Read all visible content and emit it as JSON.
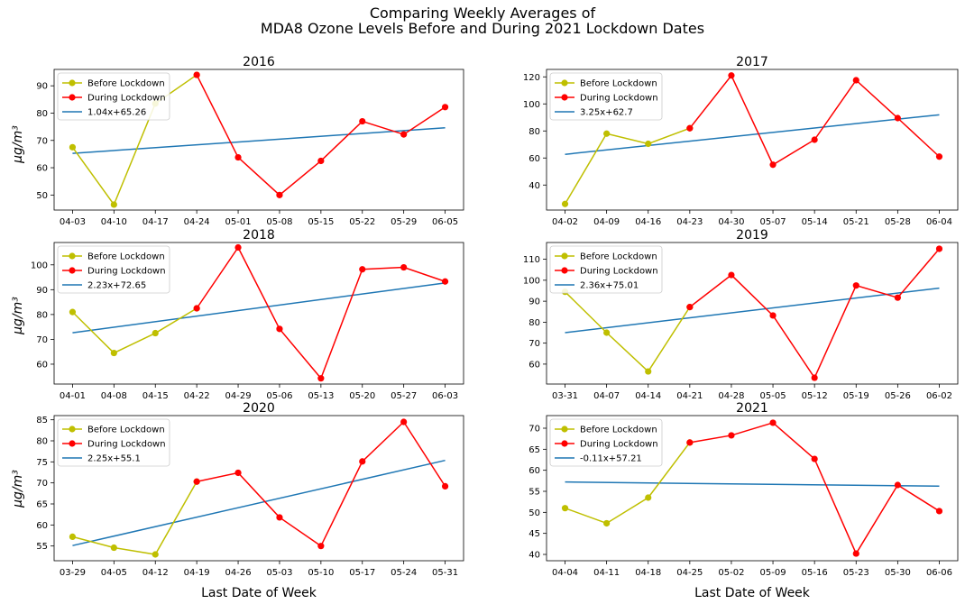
{
  "figure": {
    "title_line1": "Comparing Weekly Averages of",
    "title_line2": "MDA8 Ozone Levels Before and During 2021 Lockdown Dates",
    "ylabel": "μg/m³",
    "xlabel": "Last Date of Week",
    "legend_before": "Before Lockdown",
    "legend_during": "During Lockdown"
  },
  "colors": {
    "before": "#bfbf00",
    "during": "#ff0000",
    "trend": "#1f77b4"
  },
  "chart_data": [
    {
      "type": "line",
      "title": "2016",
      "categories": [
        "04-03",
        "04-10",
        "04-17",
        "04-24",
        "05-01",
        "05-08",
        "05-15",
        "05-22",
        "05-29",
        "06-05"
      ],
      "before": [
        67.5,
        46.5,
        83.5,
        94
      ],
      "during": [
        94,
        63.8,
        50,
        62.5,
        77,
        72.2,
        82.2
      ],
      "trend_label": "1.04x+65.26",
      "trend": [
        65.26,
        74.62
      ],
      "ylim": [
        44.5,
        96
      ],
      "yticks": [
        50,
        60,
        70,
        80,
        90
      ]
    },
    {
      "type": "line",
      "title": "2017",
      "categories": [
        "04-02",
        "04-09",
        "04-16",
        "04-23",
        "04-30",
        "05-07",
        "05-14",
        "05-21",
        "05-28",
        "06-04"
      ],
      "before": [
        26,
        78,
        70.5,
        82
      ],
      "during": [
        82,
        121,
        55,
        73.5,
        117.5,
        89.5,
        61
      ],
      "trend_label": "3.25x+62.7",
      "trend": [
        62.7,
        91.95
      ],
      "ylim": [
        21.5,
        125.5
      ],
      "yticks": [
        40,
        60,
        80,
        100,
        120
      ]
    },
    {
      "type": "line",
      "title": "2018",
      "categories": [
        "04-01",
        "04-08",
        "04-15",
        "04-22",
        "04-29",
        "05-06",
        "05-13",
        "05-20",
        "05-27",
        "06-03"
      ],
      "before": [
        81,
        64.5,
        72.5,
        82.5
      ],
      "during": [
        82.5,
        107,
        74.2,
        54.3,
        98.2,
        99,
        93.3
      ],
      "trend_label": "2.23x+72.65",
      "trend": [
        72.65,
        92.72
      ],
      "ylim": [
        52,
        109
      ],
      "yticks": [
        60,
        70,
        80,
        90,
        100
      ]
    },
    {
      "type": "line",
      "title": "2019",
      "categories": [
        "03-31",
        "04-07",
        "04-14",
        "04-21",
        "04-28",
        "05-05",
        "05-12",
        "05-19",
        "05-26",
        "06-02"
      ],
      "before": [
        94.5,
        75,
        56.5,
        87.2
      ],
      "during": [
        87.2,
        102.5,
        83.2,
        53.5,
        97.5,
        91.7,
        115
      ],
      "trend_label": "2.36x+75.01",
      "trend": [
        75.01,
        96.25
      ],
      "ylim": [
        50.5,
        118
      ],
      "yticks": [
        60,
        70,
        80,
        90,
        100,
        110
      ]
    },
    {
      "type": "line",
      "title": "2020",
      "categories": [
        "03-29",
        "04-05",
        "04-12",
        "04-19",
        "04-26",
        "05-03",
        "05-10",
        "05-17",
        "05-24",
        "05-31"
      ],
      "before": [
        57.2,
        54.6,
        53,
        70.3
      ],
      "during": [
        70.3,
        72.4,
        61.8,
        55,
        75.1,
        84.5,
        69.2
      ],
      "trend_label": "2.25x+55.1",
      "trend": [
        55.1,
        75.35
      ],
      "ylim": [
        51.5,
        86
      ],
      "yticks": [
        55,
        60,
        65,
        70,
        75,
        80,
        85
      ]
    },
    {
      "type": "line",
      "title": "2021",
      "categories": [
        "04-04",
        "04-11",
        "04-18",
        "04-25",
        "05-02",
        "05-09",
        "05-16",
        "05-23",
        "05-30",
        "06-06"
      ],
      "before": [
        51,
        47.4,
        53.5,
        66.6
      ],
      "during": [
        66.6,
        68.3,
        71.3,
        62.7,
        40.2,
        56.5,
        50.3
      ],
      "trend_label": "-0.11x+57.21",
      "trend": [
        57.21,
        56.22
      ],
      "ylim": [
        38.5,
        73
      ],
      "yticks": [
        40,
        45,
        50,
        55,
        60,
        65,
        70
      ]
    }
  ]
}
